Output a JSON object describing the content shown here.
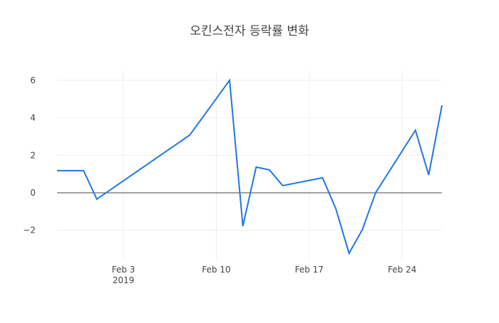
{
  "chart_data": {
    "type": "line",
    "title": "오킨스전자 등락률 변화",
    "x": [
      "2019-01-29",
      "2019-01-31",
      "2019-02-01",
      "2019-02-08",
      "2019-02-11",
      "2019-02-12",
      "2019-02-13",
      "2019-02-14",
      "2019-02-15",
      "2019-02-18",
      "2019-02-19",
      "2019-02-20",
      "2019-02-21",
      "2019-02-22",
      "2019-02-25",
      "2019-02-26",
      "2019-02-27"
    ],
    "values": [
      1.18,
      1.18,
      -0.34,
      3.08,
      6.0,
      -1.78,
      1.37,
      1.22,
      0.38,
      0.8,
      -0.84,
      -3.23,
      -1.97,
      0.0,
      3.34,
      0.95,
      4.67
    ],
    "color": "#1f77e4",
    "xlim": [
      "2019-01-29",
      "2019-02-27"
    ],
    "xticks": [
      {
        "value": "2019-02-03",
        "label": "Feb 3",
        "sublabel": "2019"
      },
      {
        "value": "2019-02-10",
        "label": "Feb 10"
      },
      {
        "value": "2019-02-17",
        "label": "Feb 17"
      },
      {
        "value": "2019-02-24",
        "label": "Feb 24"
      }
    ],
    "ylim": [
      -3.57,
      6.49
    ],
    "yticks": [
      {
        "value": -2,
        "label": "−2"
      },
      0,
      2,
      4,
      6
    ],
    "grid": true,
    "zeroline": true
  }
}
